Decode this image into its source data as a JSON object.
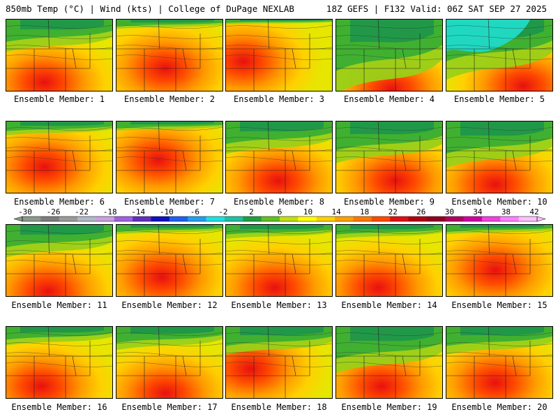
{
  "header": {
    "left": "850mb Temp (°C) | Wind (kts) | College of DuPage NEXLAB",
    "right": "18Z GEFS | F132 Valid: 06Z SAT SEP 27 2025"
  },
  "members": [
    {
      "label": "Ensemble Member: 1"
    },
    {
      "label": "Ensemble Member: 2"
    },
    {
      "label": "Ensemble Member: 3"
    },
    {
      "label": "Ensemble Member: 4"
    },
    {
      "label": "Ensemble Member: 5"
    },
    {
      "label": "Ensemble Member: 6"
    },
    {
      "label": "Ensemble Member: 7"
    },
    {
      "label": "Ensemble Member: 8"
    },
    {
      "label": "Ensemble Member: 9"
    },
    {
      "label": "Ensemble Member: 10"
    },
    {
      "label": "Ensemble Member: 11"
    },
    {
      "label": "Ensemble Member: 12"
    },
    {
      "label": "Ensemble Member: 13"
    },
    {
      "label": "Ensemble Member: 14"
    },
    {
      "label": "Ensemble Member: 15"
    },
    {
      "label": "Ensemble Member: 16"
    },
    {
      "label": "Ensemble Member: 17"
    },
    {
      "label": "Ensemble Member: 18"
    },
    {
      "label": "Ensemble Member: 19"
    },
    {
      "label": "Ensemble Member: 20"
    }
  ],
  "colorbar": {
    "labels": [
      "-30",
      "-26",
      "-22",
      "-18",
      "-14",
      "-10",
      "-6",
      "-2",
      "2",
      "6",
      "10",
      "14",
      "18",
      "22",
      "26",
      "30",
      "34",
      "38",
      "42"
    ],
    "colors": [
      "#8a9a8a",
      "#7d7d7d",
      "#9a9a9a",
      "#b0b8c8",
      "#c8a0e0",
      "#a060e0",
      "#6030c0",
      "#1010c0",
      "#2060f0",
      "#20a0f0",
      "#20e0e0",
      "#20c0a0",
      "#20a040",
      "#60c020",
      "#c0e010",
      "#ffff00",
      "#ffd000",
      "#ffa000",
      "#ff7800",
      "#ff4800",
      "#e01010",
      "#b00010",
      "#900020",
      "#b00060",
      "#d000a0",
      "#f040e0",
      "#ff80ff",
      "#ffc0ff"
    ]
  }
}
